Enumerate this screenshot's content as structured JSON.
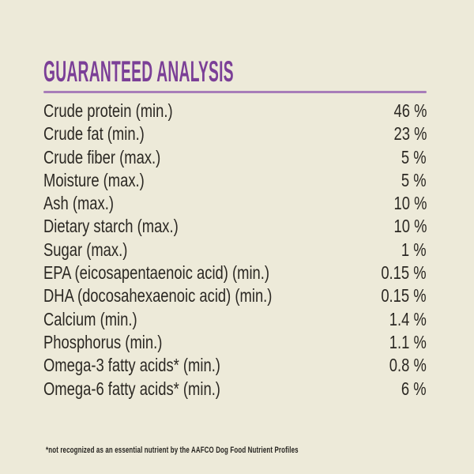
{
  "theme": {
    "background": "#edead9",
    "accent_purple": "#7b3f97",
    "underline_purple": "#a87db9",
    "text_color": "#2b2823"
  },
  "header": {
    "title": "GUARANTEED ANALYSIS"
  },
  "table": {
    "rows": [
      {
        "label": "Crude protein (min.)",
        "value": "46 %"
      },
      {
        "label": "Crude fat (min.)",
        "value": "23 %"
      },
      {
        "label": "Crude fiber (max.)",
        "value": "5 %"
      },
      {
        "label": "Moisture (max.)",
        "value": "5 %"
      },
      {
        "label": "Ash (max.)",
        "value": "10 %"
      },
      {
        "label": "Dietary starch (max.)",
        "value": "10 %"
      },
      {
        "label": "Sugar (max.)",
        "value": "1 %"
      },
      {
        "label": "EPA (eicosapentaenoic acid) (min.)",
        "value": "0.15 %"
      },
      {
        "label": "DHA (docosahexaenoic acid) (min.)",
        "value": "0.15 %"
      },
      {
        "label": "Calcium (min.)",
        "value": "1.4 %"
      },
      {
        "label": "Phosphorus (min.)",
        "value": "1.1 %"
      },
      {
        "label": "Omega-3 fatty acids* (min.)",
        "value": "0.8 %"
      },
      {
        "label": "Omega-6 fatty acids* (min.)",
        "value": "6 %"
      }
    ]
  },
  "footnote": {
    "text": "*not recognized as an essential nutrient by the AAFCO Dog Food Nutrient Profiles"
  }
}
